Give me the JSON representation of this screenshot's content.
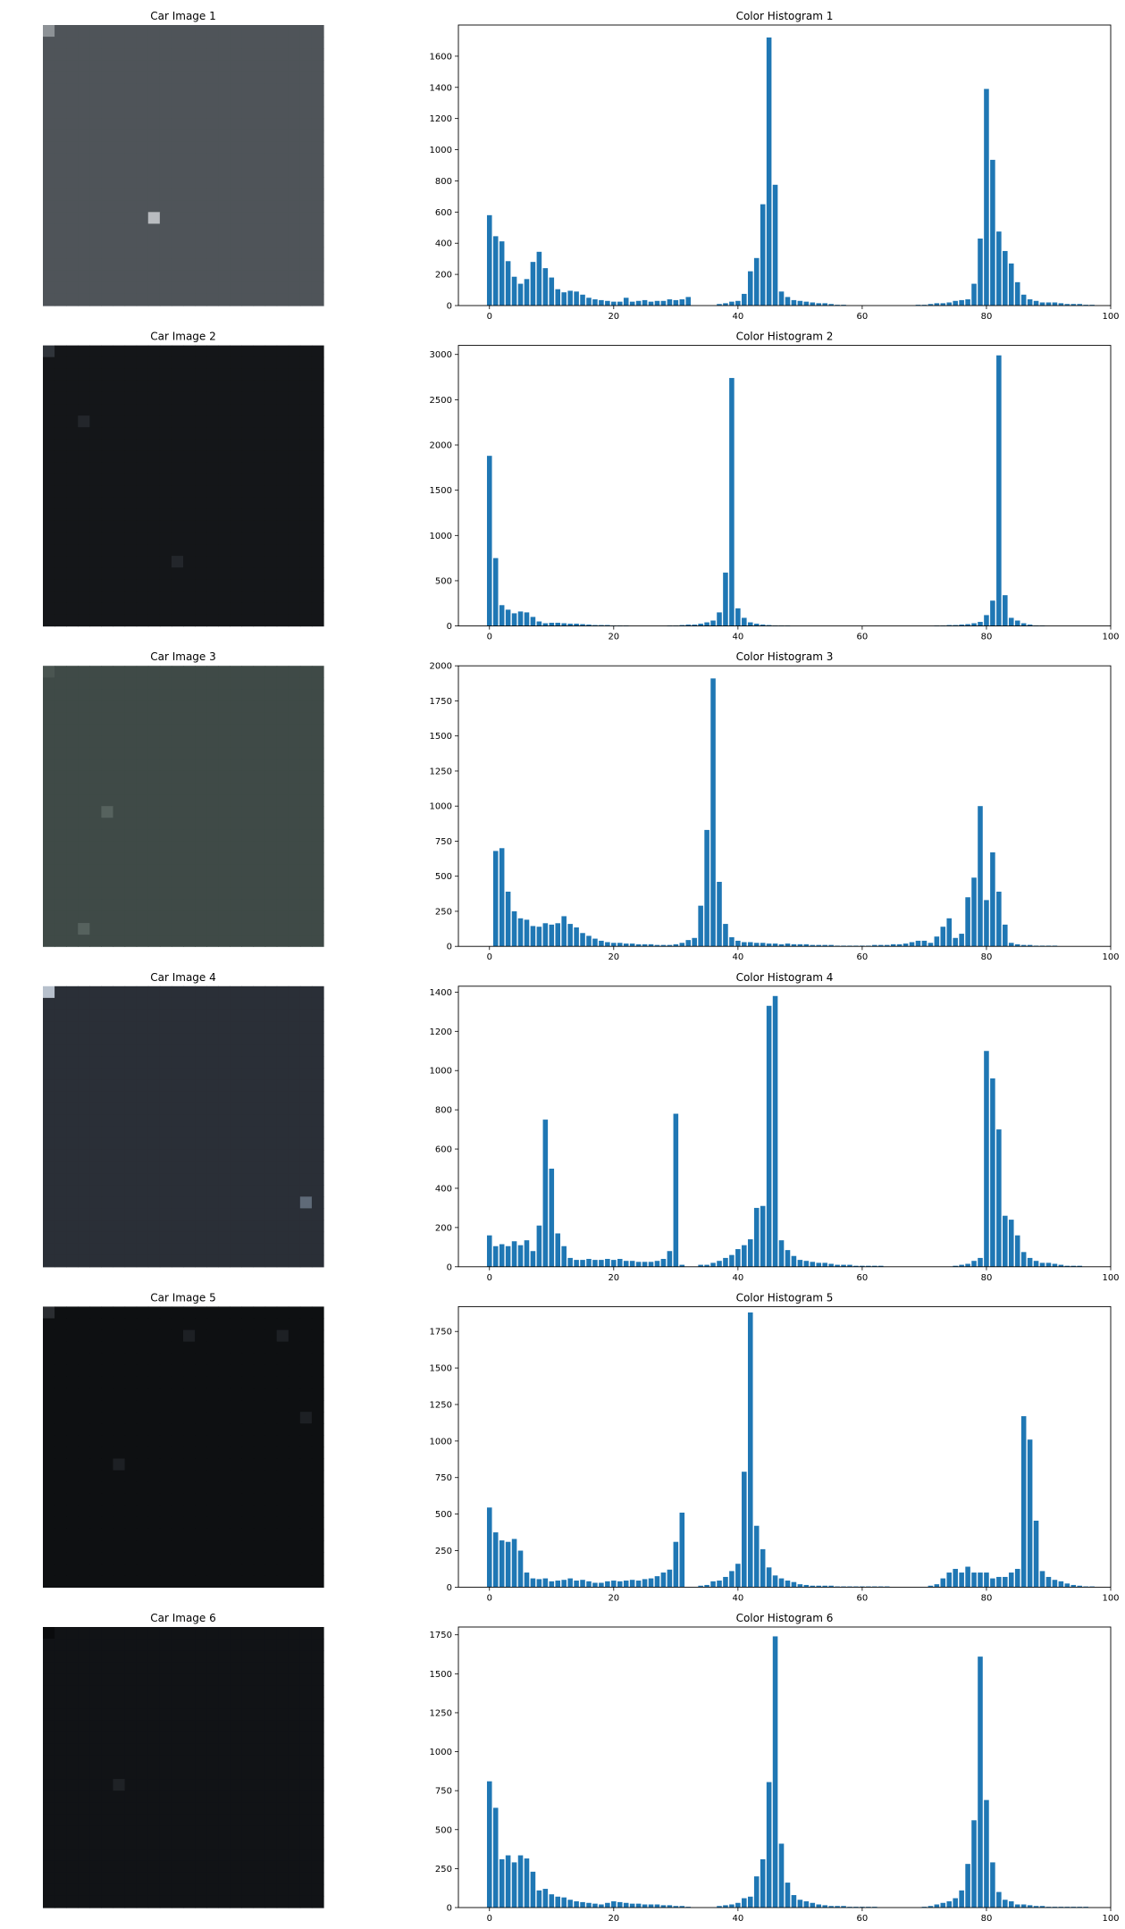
{
  "figure": {
    "rows": [
      {
        "image_title": "Car Image 1",
        "image_palette": [
          "#4f5459",
          "#b9bcc0",
          "#8d9296",
          "#2b2f33",
          "#c8cbd0",
          "#9aa0a6",
          "#3a3d40",
          "#a33030"
        ],
        "chart_data": {
          "type": "bar",
          "title": "Color Histogram 1",
          "xlabel": "",
          "ylabel": "",
          "xlim": [
            -5,
            100
          ],
          "ylim": [
            0,
            1800
          ],
          "xticks": [
            0,
            20,
            40,
            60,
            80,
            100
          ],
          "yticks": [
            0,
            200,
            400,
            600,
            800,
            1000,
            1200,
            1400,
            1600
          ],
          "color": "#1f77b4",
          "values": [
            580,
            445,
            412,
            285,
            185,
            140,
            170,
            280,
            345,
            240,
            180,
            105,
            85,
            95,
            90,
            70,
            50,
            40,
            35,
            30,
            25,
            25,
            50,
            25,
            30,
            35,
            25,
            30,
            30,
            40,
            35,
            40,
            55,
            0,
            0,
            0,
            0,
            10,
            15,
            25,
            30,
            75,
            220,
            305,
            650,
            1720,
            775,
            90,
            55,
            35,
            30,
            25,
            20,
            15,
            15,
            10,
            5,
            5,
            0,
            0,
            0,
            0,
            0,
            0,
            0,
            0,
            0,
            0,
            0,
            5,
            5,
            10,
            15,
            15,
            20,
            30,
            35,
            40,
            140,
            430,
            1390,
            935,
            475,
            350,
            270,
            150,
            70,
            40,
            30,
            20,
            20,
            20,
            15,
            10,
            10,
            10,
            5,
            5
          ]
        }
      },
      {
        "image_title": "Car Image 2",
        "image_palette": [
          "#141619",
          "#23262b",
          "#0e1012",
          "#2f343a",
          "#1b1d21",
          "#8a2b22",
          "#3c4148",
          "#c86a2a"
        ],
        "chart_data": {
          "type": "bar",
          "title": "Color Histogram 2",
          "xlabel": "",
          "ylabel": "",
          "xlim": [
            -5,
            100
          ],
          "ylim": [
            0,
            3100
          ],
          "xticks": [
            0,
            20,
            40,
            60,
            80,
            100
          ],
          "yticks": [
            0,
            500,
            1000,
            1500,
            2000,
            2500,
            3000
          ],
          "color": "#1f77b4",
          "values": [
            1880,
            750,
            230,
            180,
            140,
            160,
            150,
            100,
            50,
            30,
            35,
            35,
            30,
            25,
            25,
            20,
            15,
            10,
            10,
            10,
            5,
            5,
            5,
            0,
            0,
            0,
            0,
            0,
            0,
            5,
            5,
            10,
            15,
            15,
            25,
            40,
            60,
            150,
            590,
            2740,
            195,
            90,
            40,
            25,
            15,
            10,
            5,
            5,
            5,
            0,
            0,
            0,
            0,
            0,
            0,
            0,
            0,
            0,
            0,
            0,
            0,
            0,
            0,
            0,
            0,
            0,
            0,
            0,
            0,
            0,
            0,
            0,
            5,
            5,
            10,
            10,
            15,
            20,
            30,
            45,
            120,
            280,
            2990,
            340,
            90,
            60,
            30,
            15,
            5,
            5,
            0,
            0,
            0,
            0,
            0,
            0,
            0,
            0
          ]
        }
      },
      {
        "image_title": "Car Image 3",
        "image_palette": [
          "#3f4a47",
          "#56625e",
          "#2f3835",
          "#6b7873",
          "#4a5551",
          "#b84a52",
          "#d8dcda",
          "#384240"
        ],
        "chart_data": {
          "type": "bar",
          "title": "Color Histogram 3",
          "xlabel": "",
          "ylabel": "",
          "xlim": [
            -5,
            100
          ],
          "ylim": [
            0,
            2000
          ],
          "xticks": [
            0,
            20,
            40,
            60,
            80,
            100
          ],
          "yticks": [
            0,
            250,
            500,
            750,
            1000,
            1250,
            1500,
            1750,
            2000
          ],
          "color": "#1f77b4",
          "values": [
            0,
            680,
            700,
            390,
            250,
            200,
            190,
            145,
            140,
            165,
            155,
            165,
            215,
            160,
            135,
            95,
            75,
            55,
            40,
            30,
            25,
            25,
            20,
            20,
            15,
            15,
            15,
            10,
            10,
            10,
            15,
            25,
            45,
            60,
            290,
            830,
            1910,
            460,
            160,
            65,
            40,
            30,
            30,
            25,
            25,
            20,
            20,
            15,
            20,
            15,
            15,
            15,
            10,
            10,
            10,
            10,
            5,
            5,
            5,
            5,
            5,
            5,
            10,
            10,
            10,
            15,
            15,
            20,
            30,
            40,
            40,
            25,
            70,
            140,
            200,
            60,
            90,
            350,
            490,
            1000,
            330,
            670,
            390,
            155,
            25,
            15,
            10,
            10,
            5,
            5,
            5,
            5,
            0,
            0,
            0,
            0,
            0,
            0
          ]
        }
      },
      {
        "image_title": "Car Image 4",
        "image_palette": [
          "#2a2f37",
          "#5f6a78",
          "#e7e9ee",
          "#8a96a4",
          "#3c424c",
          "#b7c0cc",
          "#1c2026",
          "#f4f6fa"
        ],
        "chart_data": {
          "type": "bar",
          "title": "Color Histogram 4",
          "xlabel": "",
          "ylabel": "",
          "xlim": [
            -5,
            100
          ],
          "ylim": [
            0,
            1430
          ],
          "xticks": [
            0,
            20,
            40,
            60,
            80,
            100
          ],
          "yticks": [
            0,
            200,
            400,
            600,
            800,
            1000,
            1200,
            1400
          ],
          "color": "#1f77b4",
          "values": [
            160,
            105,
            115,
            105,
            130,
            110,
            135,
            80,
            210,
            750,
            500,
            170,
            105,
            45,
            35,
            35,
            40,
            35,
            35,
            40,
            35,
            40,
            30,
            30,
            25,
            25,
            25,
            30,
            40,
            80,
            780,
            10,
            0,
            0,
            10,
            10,
            20,
            30,
            45,
            60,
            90,
            110,
            140,
            300,
            310,
            1330,
            1380,
            135,
            85,
            55,
            35,
            30,
            25,
            20,
            20,
            15,
            10,
            10,
            10,
            5,
            5,
            5,
            5,
            5,
            0,
            0,
            0,
            0,
            0,
            0,
            0,
            0,
            0,
            0,
            0,
            5,
            10,
            15,
            30,
            45,
            1100,
            960,
            700,
            260,
            240,
            160,
            75,
            45,
            30,
            20,
            20,
            15,
            10,
            5,
            5,
            5,
            0,
            0
          ]
        }
      },
      {
        "image_title": "Car Image 5",
        "image_palette": [
          "#0e1012",
          "#1d2024",
          "#f4efc3",
          "#3b3f45",
          "#7b7a72",
          "#c9c3a2",
          "#2a2d31",
          "#e8e1b0"
        ],
        "chart_data": {
          "type": "bar",
          "title": "Color Histogram 5",
          "xlabel": "",
          "ylabel": "",
          "xlim": [
            -5,
            100
          ],
          "ylim": [
            0,
            1920
          ],
          "xticks": [
            0,
            20,
            40,
            60,
            80,
            100
          ],
          "yticks": [
            0,
            250,
            500,
            750,
            1000,
            1250,
            1500,
            1750
          ],
          "color": "#1f77b4",
          "values": [
            545,
            375,
            320,
            310,
            330,
            250,
            100,
            60,
            55,
            60,
            40,
            45,
            50,
            60,
            45,
            50,
            40,
            30,
            30,
            40,
            45,
            40,
            45,
            50,
            45,
            55,
            60,
            75,
            100,
            120,
            310,
            510,
            0,
            0,
            10,
            15,
            40,
            45,
            70,
            110,
            160,
            790,
            1880,
            420,
            260,
            135,
            80,
            60,
            45,
            35,
            20,
            15,
            10,
            10,
            10,
            10,
            5,
            5,
            5,
            5,
            5,
            5,
            5,
            5,
            5,
            0,
            0,
            0,
            0,
            0,
            0,
            10,
            20,
            60,
            100,
            125,
            100,
            140,
            100,
            100,
            100,
            60,
            70,
            70,
            100,
            125,
            1170,
            1010,
            455,
            110,
            70,
            50,
            40,
            25,
            15,
            10,
            5,
            5
          ]
        }
      },
      {
        "image_title": "Car Image 6",
        "image_palette": [
          "#111316",
          "#1f2226",
          "#2c3035",
          "#393e44",
          "#16181b",
          "#4a5058",
          "#8b8f94",
          "#0a0b0d"
        ],
        "chart_data": {
          "type": "bar",
          "title": "Color Histogram 6",
          "xlabel": "",
          "ylabel": "",
          "xlim": [
            -5,
            100
          ],
          "ylim": [
            0,
            1800
          ],
          "xticks": [
            0,
            20,
            40,
            60,
            80,
            100
          ],
          "yticks": [
            0,
            250,
            500,
            750,
            1000,
            1250,
            1500,
            1750
          ],
          "color": "#1f77b4",
          "values": [
            810,
            640,
            310,
            335,
            290,
            335,
            315,
            230,
            110,
            120,
            85,
            70,
            65,
            50,
            40,
            35,
            30,
            25,
            20,
            30,
            40,
            35,
            30,
            25,
            25,
            20,
            20,
            20,
            15,
            15,
            10,
            10,
            5,
            0,
            0,
            0,
            0,
            10,
            15,
            20,
            30,
            60,
            70,
            200,
            310,
            805,
            1740,
            410,
            160,
            80,
            50,
            40,
            30,
            20,
            15,
            10,
            10,
            10,
            5,
            5,
            5,
            5,
            5,
            0,
            0,
            0,
            0,
            0,
            0,
            0,
            5,
            10,
            20,
            30,
            40,
            60,
            110,
            280,
            560,
            1610,
            690,
            290,
            100,
            50,
            40,
            20,
            20,
            15,
            10,
            10,
            5,
            5,
            5,
            5,
            5,
            5,
            5,
            0
          ]
        }
      }
    ]
  }
}
